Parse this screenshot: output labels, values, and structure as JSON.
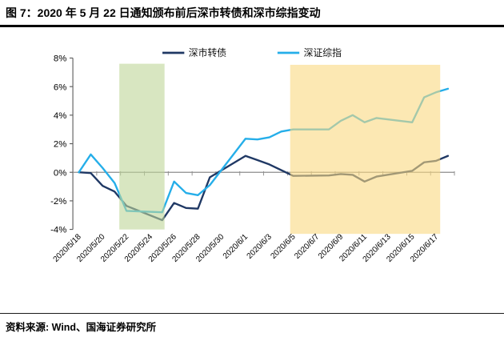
{
  "title": "图 7：2020 年 5 月 22 日通知颁布前后深市转债和深市综指变动",
  "source_note": "资料来源: Wind、国海证券研究所",
  "chart_data": {
    "type": "line",
    "title": "2020 年 5 月 22 日通知颁布前后深市转债和深市综指变动",
    "xlabel": "",
    "ylabel": "",
    "ylim": [
      -4,
      8
    ],
    "grid": false,
    "legend_position": "top",
    "axis_color": "#595959",
    "zero_line_color": "#8C8C8C",
    "dates": [
      "2020/5/18",
      "2020/5/19",
      "2020/5/20",
      "2020/5/21",
      "2020/5/22",
      "2020/5/25",
      "2020/5/26",
      "2020/5/27",
      "2020/5/28",
      "2020/5/29",
      "2020/6/1",
      "2020/6/2",
      "2020/6/3",
      "2020/6/4",
      "2020/6/5",
      "2020/6/8",
      "2020/6/9",
      "2020/6/10",
      "2020/6/11",
      "2020/6/12",
      "2020/6/15",
      "2020/6/16",
      "2020/6/17",
      "2020/6/18"
    ],
    "day_offsets": [
      0,
      1,
      2,
      3,
      4,
      7,
      8,
      9,
      10,
      11,
      14,
      15,
      16,
      17,
      18,
      21,
      22,
      23,
      24,
      25,
      28,
      29,
      30,
      31
    ],
    "series": [
      {
        "name": "深市转债",
        "slug": "shenzhen-convertible-bond",
        "color": "#1F3864",
        "values": [
          0,
          -0.05,
          -0.95,
          -1.35,
          -2.35,
          -3.35,
          -2.15,
          -2.5,
          -2.55,
          -0.35,
          1.15,
          0.85,
          0.55,
          0.15,
          -0.25,
          -0.22,
          -0.12,
          -0.18,
          -0.65,
          -0.3,
          0.1,
          0.7,
          0.8,
          1.15
        ]
      },
      {
        "name": "深证综指",
        "slug": "shenzhen-composite-index",
        "color": "#25AEE9",
        "values": [
          0,
          1.25,
          0.3,
          -0.75,
          -2.7,
          -2.8,
          -0.65,
          -1.45,
          -1.6,
          -0.9,
          2.35,
          2.3,
          2.45,
          2.85,
          3.0,
          3.0,
          3.6,
          4.0,
          3.5,
          3.8,
          3.5,
          5.25,
          5.6,
          5.85
        ]
      }
    ],
    "y_ticks": [
      "8%",
      "6%",
      "4%",
      "2%",
      "0%",
      "-2%",
      "-4%"
    ],
    "y_tick_values": [
      8,
      6,
      4,
      2,
      0,
      -2,
      -4
    ],
    "x_tick_labels": [
      "2020/5/18",
      "2020/5/20",
      "2020/5/22",
      "2020/5/24",
      "2020/5/26",
      "2020/5/28",
      "2020/5/30",
      "2020/6/1",
      "2020/6/3",
      "2020/6/5",
      "2020/6/7",
      "2020/6/9",
      "2020/6/11",
      "2020/6/13",
      "2020/6/15",
      "2020/6/17"
    ],
    "x_tick_day_offsets": [
      0,
      2,
      4,
      6,
      8,
      10,
      12,
      14,
      16,
      18,
      20,
      22,
      24,
      26,
      28,
      30
    ],
    "bands": [
      {
        "name": "notice-window-highlight",
        "start_day": 3.4,
        "end_day": 7.2,
        "start_date": "2020/5/22",
        "end_date": "2020/5/25",
        "color": "rgba(190,214,152,0.6)"
      },
      {
        "name": "post-notice-highlight",
        "start_day": 17.75,
        "end_day": 30.35,
        "start_date": "2020/6/5",
        "end_date": "2020/6/17",
        "color": "rgba(250,216,128,0.6)"
      }
    ]
  }
}
